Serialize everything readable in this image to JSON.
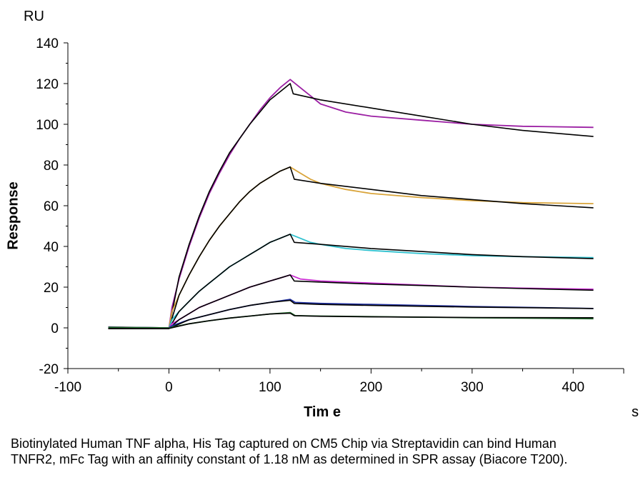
{
  "chart_data": {
    "type": "line",
    "y_unit": "RU",
    "x_unit": "s",
    "xlabel": "Tim e",
    "ylabel": "Response",
    "xlim": [
      -100,
      450
    ],
    "ylim": [
      -20,
      140
    ],
    "x_ticks": [
      -100,
      0,
      100,
      200,
      300,
      400
    ],
    "y_ticks": [
      -20,
      0,
      20,
      40,
      60,
      80,
      100,
      120,
      140
    ],
    "grid": false,
    "legend": "none",
    "series": [
      {
        "color": "#9b1fa3",
        "points": [
          [
            -60,
            0.5
          ],
          [
            -10,
            0
          ],
          [
            0,
            0
          ],
          [
            3,
            10
          ],
          [
            10,
            24
          ],
          [
            20,
            40
          ],
          [
            30,
            54
          ],
          [
            40,
            66
          ],
          [
            50,
            76
          ],
          [
            60,
            85
          ],
          [
            70,
            93
          ],
          [
            80,
            100
          ],
          [
            90,
            107
          ],
          [
            100,
            113
          ],
          [
            110,
            118
          ],
          [
            120,
            122
          ],
          [
            130,
            118
          ],
          [
            140,
            114
          ],
          [
            150,
            110
          ],
          [
            175,
            106
          ],
          [
            200,
            104
          ],
          [
            250,
            102
          ],
          [
            300,
            100
          ],
          [
            350,
            99
          ],
          [
            420,
            98.5
          ]
        ]
      },
      {
        "color": "#000000",
        "points": [
          [
            -60,
            -0.3
          ],
          [
            -10,
            -0.3
          ],
          [
            0,
            -0.3
          ],
          [
            10,
            25
          ],
          [
            20,
            41
          ],
          [
            30,
            55
          ],
          [
            40,
            67
          ],
          [
            50,
            77
          ],
          [
            60,
            86
          ],
          [
            70,
            93
          ],
          [
            80,
            100
          ],
          [
            90,
            106
          ],
          [
            100,
            112
          ],
          [
            110,
            116
          ],
          [
            120,
            120
          ],
          [
            123,
            115
          ],
          [
            150,
            112
          ],
          [
            200,
            108
          ],
          [
            250,
            104
          ],
          [
            300,
            100
          ],
          [
            350,
            97
          ],
          [
            420,
            94
          ]
        ]
      },
      {
        "color": "#d9a43a",
        "points": [
          [
            -60,
            0.3
          ],
          [
            0,
            0
          ],
          [
            3,
            8
          ],
          [
            10,
            16
          ],
          [
            20,
            26
          ],
          [
            30,
            35
          ],
          [
            40,
            43
          ],
          [
            50,
            50
          ],
          [
            60,
            56
          ],
          [
            70,
            62
          ],
          [
            80,
            67
          ],
          [
            90,
            71
          ],
          [
            100,
            74
          ],
          [
            110,
            77
          ],
          [
            120,
            79
          ],
          [
            130,
            76
          ],
          [
            140,
            73
          ],
          [
            150,
            71
          ],
          [
            175,
            68
          ],
          [
            200,
            66
          ],
          [
            250,
            64
          ],
          [
            300,
            62.5
          ],
          [
            350,
            61.5
          ],
          [
            420,
            61
          ]
        ]
      },
      {
        "color": "#000000",
        "points": [
          [
            -60,
            -0.3
          ],
          [
            0,
            -0.3
          ],
          [
            10,
            16
          ],
          [
            20,
            26
          ],
          [
            30,
            35
          ],
          [
            40,
            43
          ],
          [
            50,
            50
          ],
          [
            60,
            56
          ],
          [
            70,
            62
          ],
          [
            80,
            67
          ],
          [
            90,
            71
          ],
          [
            100,
            74
          ],
          [
            110,
            77
          ],
          [
            120,
            79
          ],
          [
            124,
            73
          ],
          [
            150,
            71
          ],
          [
            200,
            68
          ],
          [
            250,
            65
          ],
          [
            300,
            63
          ],
          [
            350,
            61
          ],
          [
            420,
            59
          ]
        ]
      },
      {
        "color": "#2fc1cf",
        "points": [
          [
            -60,
            0.3
          ],
          [
            0,
            0
          ],
          [
            3,
            4
          ],
          [
            10,
            8
          ],
          [
            20,
            13
          ],
          [
            30,
            18
          ],
          [
            40,
            22
          ],
          [
            50,
            26
          ],
          [
            60,
            30
          ],
          [
            70,
            33
          ],
          [
            80,
            36
          ],
          [
            90,
            39
          ],
          [
            100,
            42
          ],
          [
            110,
            44
          ],
          [
            120,
            46
          ],
          [
            130,
            44
          ],
          [
            140,
            42
          ],
          [
            150,
            41
          ],
          [
            175,
            39
          ],
          [
            200,
            38
          ],
          [
            250,
            36.5
          ],
          [
            300,
            35.5
          ],
          [
            350,
            35
          ],
          [
            420,
            34.5
          ]
        ]
      },
      {
        "color": "#000000",
        "points": [
          [
            -60,
            -0.3
          ],
          [
            0,
            -0.3
          ],
          [
            10,
            8
          ],
          [
            20,
            13
          ],
          [
            30,
            18
          ],
          [
            40,
            22
          ],
          [
            50,
            26
          ],
          [
            60,
            30
          ],
          [
            70,
            33
          ],
          [
            80,
            36
          ],
          [
            90,
            39
          ],
          [
            100,
            42
          ],
          [
            110,
            44
          ],
          [
            120,
            46
          ],
          [
            124,
            42
          ],
          [
            150,
            41
          ],
          [
            200,
            39
          ],
          [
            250,
            37.5
          ],
          [
            300,
            36
          ],
          [
            350,
            35
          ],
          [
            420,
            34
          ]
        ]
      },
      {
        "color": "#c92bd1",
        "points": [
          [
            -60,
            0.3
          ],
          [
            0,
            0
          ],
          [
            3,
            2
          ],
          [
            10,
            4
          ],
          [
            20,
            7
          ],
          [
            30,
            10
          ],
          [
            40,
            12
          ],
          [
            50,
            14
          ],
          [
            60,
            16
          ],
          [
            70,
            18
          ],
          [
            80,
            20
          ],
          [
            90,
            21.5
          ],
          [
            100,
            23
          ],
          [
            110,
            24.5
          ],
          [
            120,
            26
          ],
          [
            130,
            24
          ],
          [
            150,
            23
          ],
          [
            200,
            22
          ],
          [
            250,
            21
          ],
          [
            300,
            20
          ],
          [
            350,
            19.5
          ],
          [
            420,
            19
          ]
        ]
      },
      {
        "color": "#000000",
        "points": [
          [
            -60,
            -0.3
          ],
          [
            0,
            -0.3
          ],
          [
            10,
            4
          ],
          [
            20,
            7
          ],
          [
            30,
            10
          ],
          [
            40,
            12
          ],
          [
            50,
            14
          ],
          [
            60,
            16
          ],
          [
            70,
            18
          ],
          [
            80,
            20
          ],
          [
            90,
            21.5
          ],
          [
            100,
            23
          ],
          [
            110,
            24.5
          ],
          [
            120,
            26
          ],
          [
            124,
            23
          ],
          [
            150,
            22.5
          ],
          [
            200,
            21.5
          ],
          [
            250,
            20.8
          ],
          [
            300,
            20
          ],
          [
            350,
            19.3
          ],
          [
            420,
            18.5
          ]
        ]
      },
      {
        "color": "#1f2fa0",
        "points": [
          [
            -60,
            0.3
          ],
          [
            0,
            0
          ],
          [
            3,
            1
          ],
          [
            20,
            4
          ],
          [
            40,
            6.5
          ],
          [
            60,
            9
          ],
          [
            80,
            11
          ],
          [
            100,
            12.5
          ],
          [
            120,
            14
          ],
          [
            125,
            12.5
          ],
          [
            150,
            12
          ],
          [
            200,
            11.5
          ],
          [
            250,
            11
          ],
          [
            300,
            10.5
          ],
          [
            420,
            9.5
          ]
        ]
      },
      {
        "color": "#000000",
        "points": [
          [
            -60,
            -0.3
          ],
          [
            0,
            -0.3
          ],
          [
            20,
            4
          ],
          [
            40,
            6.5
          ],
          [
            60,
            9
          ],
          [
            80,
            11
          ],
          [
            100,
            12.5
          ],
          [
            120,
            13.5
          ],
          [
            124,
            12
          ],
          [
            150,
            11.5
          ],
          [
            200,
            11
          ],
          [
            250,
            10.6
          ],
          [
            300,
            10.2
          ],
          [
            420,
            9.5
          ]
        ]
      },
      {
        "color": "#1f6b2a",
        "points": [
          [
            -60,
            0.3
          ],
          [
            0,
            0
          ],
          [
            20,
            2
          ],
          [
            40,
            3.5
          ],
          [
            60,
            4.8
          ],
          [
            80,
            5.8
          ],
          [
            100,
            6.8
          ],
          [
            120,
            7.5
          ],
          [
            125,
            6
          ],
          [
            150,
            5.8
          ],
          [
            200,
            5.5
          ],
          [
            300,
            5
          ],
          [
            420,
            4.5
          ]
        ]
      },
      {
        "color": "#000000",
        "points": [
          [
            -60,
            -0.3
          ],
          [
            0,
            -0.3
          ],
          [
            20,
            2
          ],
          [
            40,
            3.5
          ],
          [
            60,
            4.8
          ],
          [
            80,
            5.8
          ],
          [
            100,
            6.8
          ],
          [
            120,
            7.2
          ],
          [
            124,
            6
          ],
          [
            150,
            5.7
          ],
          [
            200,
            5.4
          ],
          [
            300,
            5.1
          ],
          [
            420,
            5
          ]
        ]
      }
    ]
  },
  "caption": "Biotinylated Human TNF alpha, His Tag captured on CM5 Chip via Streptavidin can bind Human TNFR2, mFc Tag with an affinity constant of 1.18 nM as determined in SPR assay (Biacore T200)."
}
